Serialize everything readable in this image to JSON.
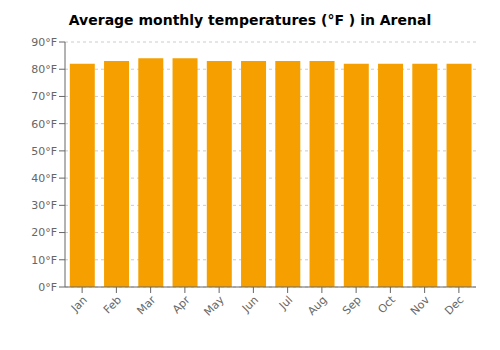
{
  "chart_data": {
    "type": "bar",
    "title": "Average monthly temperatures (°F ) in Arenal",
    "categories": [
      "Jan",
      "Feb",
      "Mar",
      "Apr",
      "May",
      "Jun",
      "Jul",
      "Aug",
      "Sep",
      "Oct",
      "Nov",
      "Dec"
    ],
    "values": [
      82,
      83,
      84,
      84,
      83,
      83,
      83,
      83,
      82,
      82,
      82,
      82
    ],
    "color": "#F5A000",
    "ylim": [
      0,
      90
    ],
    "yticks": [
      {
        "value": 0,
        "label": "0°F"
      },
      {
        "value": 10,
        "label": "10°F"
      },
      {
        "value": 20,
        "label": "20°F"
      },
      {
        "value": 30,
        "label": "30°F"
      },
      {
        "value": 40,
        "label": "40°F"
      },
      {
        "value": 50,
        "label": "50°F"
      },
      {
        "value": 60,
        "label": "60°F"
      },
      {
        "value": 70,
        "label": "70°F"
      },
      {
        "value": 80,
        "label": "80°F"
      },
      {
        "value": 90,
        "label": "90°F"
      }
    ],
    "grid": true
  }
}
